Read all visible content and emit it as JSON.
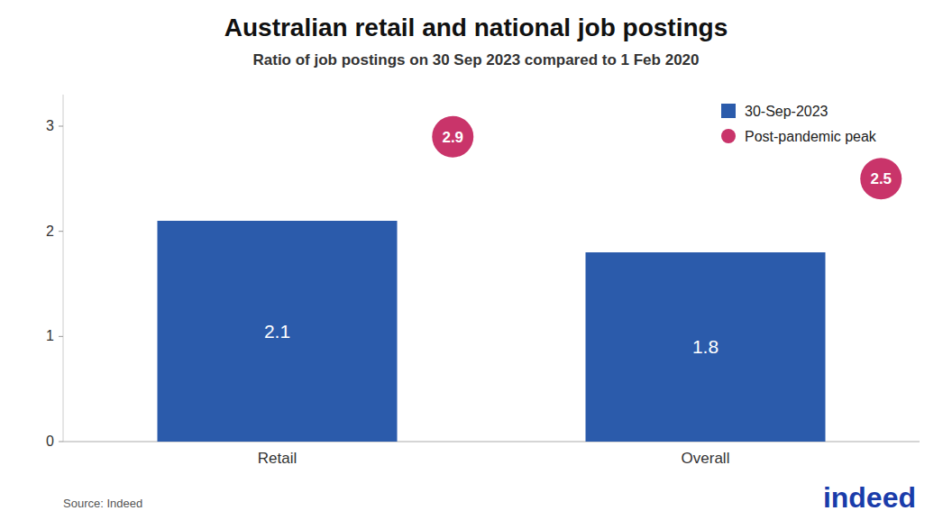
{
  "chart_data": {
    "type": "bar",
    "title": "Australian retail and national job postings",
    "subtitle": "Ratio of job postings on 30 Sep 2023 compared to 1 Feb 2020",
    "categories": [
      "Retail",
      "Overall"
    ],
    "series": [
      {
        "name": "30-Sep-2023",
        "type": "bar",
        "color": "#2b5bab",
        "values": [
          2.1,
          1.8
        ]
      },
      {
        "name": "Post-pandemic peak",
        "type": "scatter",
        "marker": "circle",
        "color": "#c9346a",
        "values": [
          2.9,
          2.5
        ]
      }
    ],
    "ylim": [
      0,
      3.3
    ],
    "yticks": [
      0,
      1,
      2,
      3
    ],
    "grid": false,
    "legend": "upper right",
    "data_labels": true,
    "annotations": [
      "Source: Indeed",
      "indeed"
    ]
  }
}
